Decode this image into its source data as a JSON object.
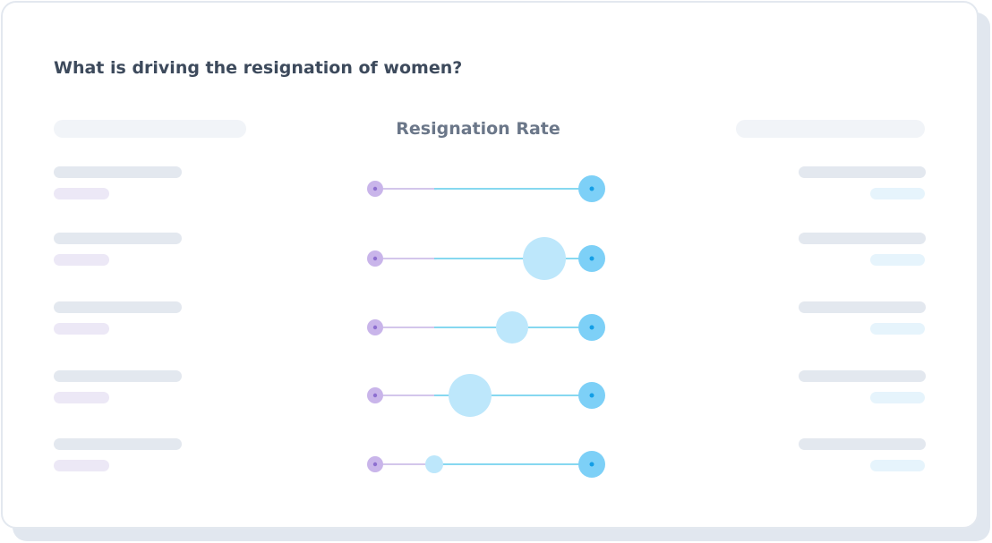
{
  "header": {
    "title": "What is driving the resignation of women?"
  },
  "chart": {
    "heading": "Resignation Rate"
  }
}
